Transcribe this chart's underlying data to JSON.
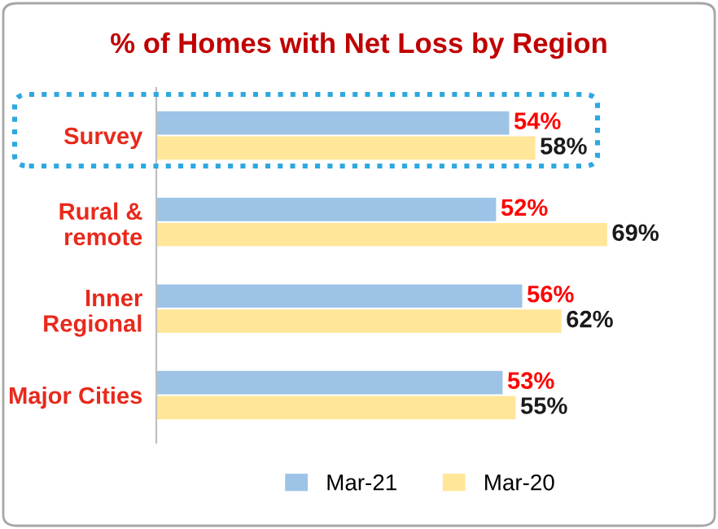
{
  "chart_data": {
    "type": "bar",
    "title": "% of Homes with Net Loss by Region",
    "orientation": "horizontal",
    "categories": [
      "Survey",
      "Rural &\nremote",
      "Inner\nRegional",
      "Major Cities"
    ],
    "series": [
      {
        "name": "Mar-21",
        "color": "#9dc3e6",
        "values": [
          54,
          52,
          56,
          53
        ],
        "value_labels": [
          "54%",
          "52%",
          "56%",
          "53%"
        ]
      },
      {
        "name": "Mar-20",
        "color": "#ffe699",
        "values": [
          58,
          69,
          62,
          55
        ],
        "value_labels": [
          "58%",
          "69%",
          "62%",
          "55%"
        ]
      }
    ],
    "tick_labels": "y",
    "legend": "bottom"
  }
}
